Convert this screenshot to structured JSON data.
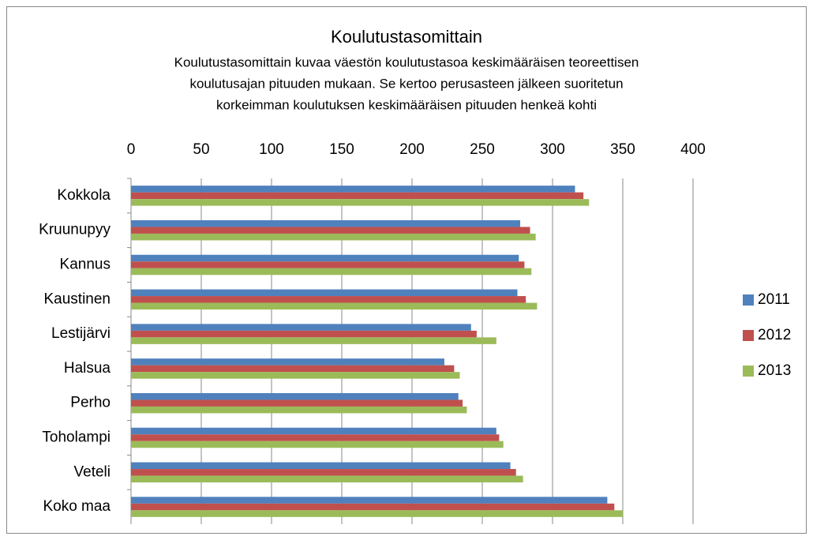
{
  "chart_data": {
    "type": "bar",
    "orientation": "horizontal",
    "title": "Koulutustasomittain",
    "subtitle": [
      "Koulutustasomittain kuvaa väestön koulutustasoa keskimääräisen teoreettisen",
      "koulutusajan pituuden mukaan. Se kertoo perusasteen jälkeen suoritetun",
      "korkeimman koulutuksen keskimääräisen pituuden henkeä kohti"
    ],
    "categories": [
      "Kokkola",
      "Kruunupyy",
      "Kannus",
      "Kaustinen",
      "Lestijärvi",
      "Halsua",
      "Perho",
      "Toholampi",
      "Veteli",
      "Koko maa"
    ],
    "series": [
      {
        "name": "2011",
        "color": "#4f81bd",
        "values": [
          316,
          277,
          276,
          275,
          242,
          223,
          233,
          260,
          270,
          339
        ]
      },
      {
        "name": "2012",
        "color": "#c0504d",
        "values": [
          322,
          284,
          280,
          281,
          246,
          230,
          236,
          262,
          274,
          344
        ]
      },
      {
        "name": "2013",
        "color": "#9bbb59",
        "values": [
          326,
          288,
          285,
          289,
          260,
          234,
          239,
          265,
          279,
          350
        ]
      }
    ],
    "xlim": [
      0,
      400
    ],
    "xticks": [
      0,
      50,
      100,
      150,
      200,
      250,
      300,
      350,
      400
    ],
    "grid": true,
    "legend": "right"
  }
}
